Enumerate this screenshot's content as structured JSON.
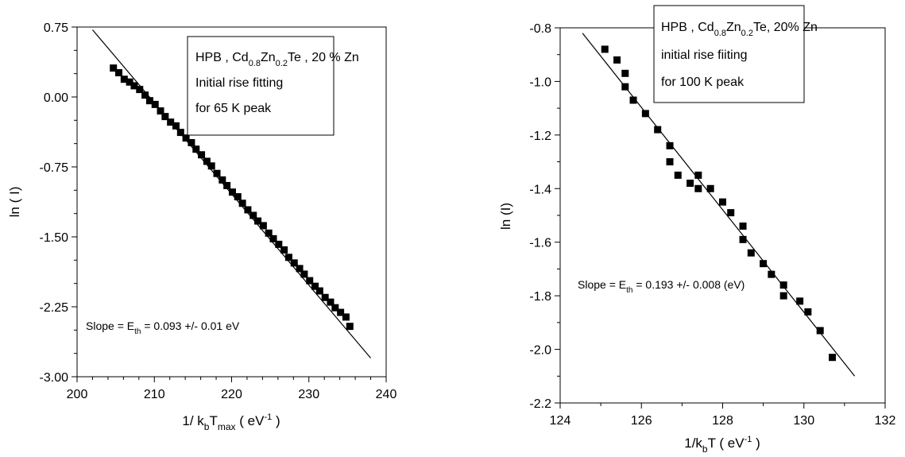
{
  "chart_data": [
    {
      "type": "scatter",
      "xlabel": "1/ kbTmax ( eV-1 )",
      "xlabel_parts": [
        "1/ k",
        "b",
        "T",
        "max",
        " ( eV",
        "-1",
        " )"
      ],
      "ylabel": "ln ( I)",
      "xlim": [
        200,
        240
      ],
      "ylim": [
        -3.0,
        0.75
      ],
      "xticks": [
        200,
        210,
        220,
        230,
        240
      ],
      "xtick_labels": [
        "200",
        "210",
        "220",
        "230",
        "240"
      ],
      "yticks": [
        0.75,
        0.0,
        -0.75,
        -1.5,
        -2.25,
        -3.0
      ],
      "ytick_labels": [
        "0.75",
        "0.00",
        "-0.75",
        "-1.50",
        "-2.25",
        "-3.00"
      ],
      "grid": false,
      "legend_box": {
        "line1": [
          "HPB , Cd",
          "0.8",
          "Zn",
          "0.2",
          "Te , 20 % Zn"
        ],
        "line2": "Initial rise fitting",
        "line3": "for 65 K peak"
      },
      "annotation": [
        "Slope = E",
        "th",
        " = 0.093 +/- 0.01 eV"
      ],
      "series": [
        {
          "marker": "square",
          "color": "#000000",
          "x": [
            204.7,
            205.4,
            206.1,
            206.8,
            207.4,
            208.1,
            208.8,
            209.4,
            210.1,
            210.8,
            211.4,
            212.1,
            212.8,
            213.4,
            214.1,
            214.8,
            215.4,
            216.1,
            216.8,
            217.4,
            218.1,
            218.8,
            219.4,
            220.1,
            220.8,
            221.4,
            222.1,
            222.8,
            223.4,
            224.1,
            224.8,
            225.4,
            226.1,
            226.8,
            227.4,
            228.1,
            228.8,
            229.4,
            230.1,
            230.8,
            231.4,
            232.1,
            232.8,
            233.4,
            234.1,
            234.8,
            235.3
          ],
          "y": [
            0.31,
            0.26,
            0.19,
            0.16,
            0.12,
            0.08,
            0.02,
            -0.04,
            -0.08,
            -0.15,
            -0.21,
            -0.27,
            -0.31,
            -0.38,
            -0.44,
            -0.49,
            -0.56,
            -0.62,
            -0.69,
            -0.74,
            -0.82,
            -0.89,
            -0.95,
            -1.02,
            -1.07,
            -1.14,
            -1.21,
            -1.27,
            -1.33,
            -1.38,
            -1.46,
            -1.52,
            -1.58,
            -1.64,
            -1.72,
            -1.78,
            -1.84,
            -1.9,
            -1.97,
            -2.03,
            -2.08,
            -2.15,
            -2.2,
            -2.26,
            -2.31,
            -2.36,
            -2.46
          ]
        }
      ],
      "fit_line": {
        "x": [
          202.0,
          238.0
        ],
        "y": [
          0.72,
          -2.8
        ]
      }
    },
    {
      "type": "scatter",
      "xlabel": "1/kbT ( eV-1 )",
      "xlabel_parts": [
        "1/k",
        "b",
        "T ( eV",
        "-1",
        " )"
      ],
      "ylabel": "ln (I)",
      "xlim": [
        124,
        132
      ],
      "ylim": [
        -2.2,
        -0.8
      ],
      "xticks": [
        124,
        126,
        128,
        130,
        132
      ],
      "xtick_labels": [
        "124",
        "126",
        "128",
        "130",
        "132"
      ],
      "yticks": [
        -0.8,
        -1.0,
        -1.2,
        -1.4,
        -1.6,
        -1.8,
        -2.0,
        -2.2
      ],
      "ytick_labels": [
        "-0.8",
        "-1.0",
        "-1.2",
        "-1.4",
        "-1.6",
        "-1.8",
        "-2.0",
        "-2.2"
      ],
      "grid": false,
      "legend_box": {
        "line1": [
          "HPB , Cd",
          "0.8",
          "Zn",
          "0.2",
          "Te, 20% Zn"
        ],
        "line2": "initial rise fiiting",
        "line3": "for 100 K peak"
      },
      "annotation": [
        "Slope = E",
        "th",
        " = 0.193 +/- 0.008 (eV)"
      ],
      "series": [
        {
          "marker": "square",
          "color": "#000000",
          "x": [
            125.1,
            125.4,
            125.6,
            125.6,
            125.8,
            126.1,
            126.4,
            126.7,
            126.7,
            126.9,
            127.2,
            127.4,
            127.4,
            127.7,
            128.0,
            128.2,
            128.5,
            128.5,
            128.7,
            129.0,
            129.2,
            129.5,
            129.5,
            129.9,
            130.1,
            130.4,
            130.7
          ],
          "y": [
            -0.88,
            -0.92,
            -0.97,
            -1.02,
            -1.07,
            -1.12,
            -1.18,
            -1.24,
            -1.3,
            -1.35,
            -1.38,
            -1.35,
            -1.4,
            -1.4,
            -1.45,
            -1.49,
            -1.54,
            -1.59,
            -1.64,
            -1.68,
            -1.72,
            -1.76,
            -1.8,
            -1.82,
            -1.86,
            -1.93,
            -2.03
          ]
        }
      ],
      "fit_line": {
        "x": [
          124.55,
          131.25
        ],
        "y": [
          -0.82,
          -2.1
        ]
      }
    }
  ]
}
